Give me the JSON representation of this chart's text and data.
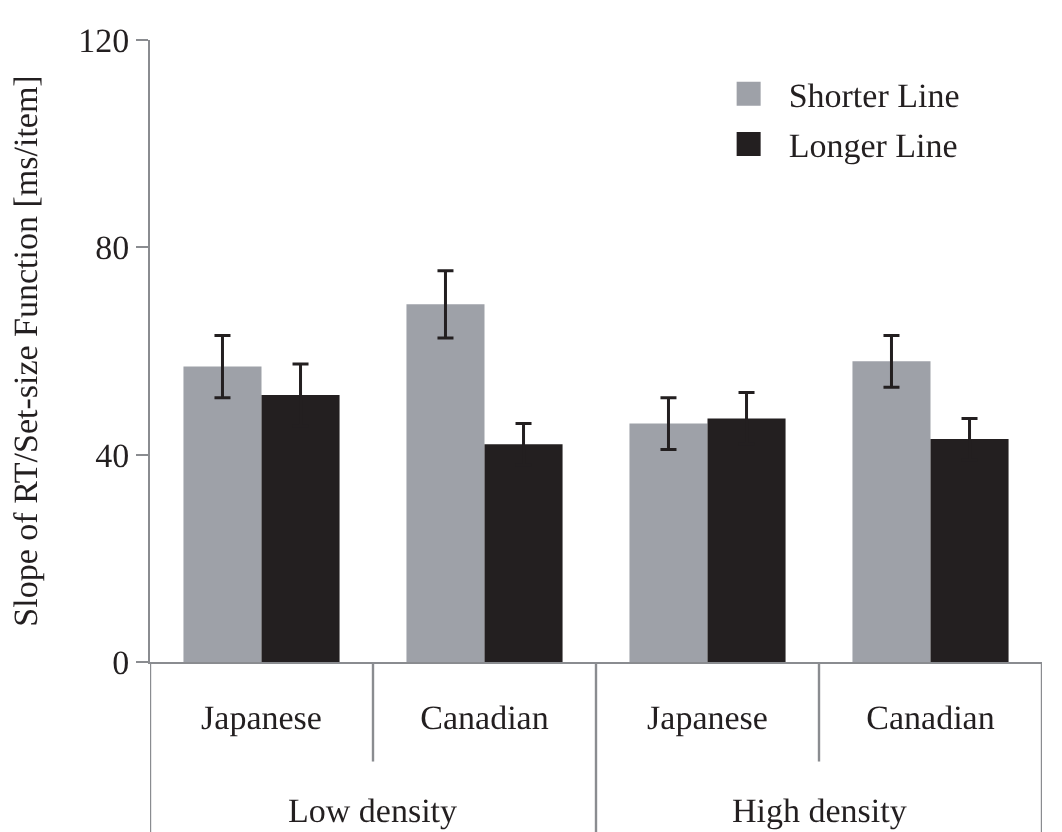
{
  "chart_data": {
    "type": "bar",
    "ylabel": "Slope of RT/Set-size Function [ms/item]",
    "categories": [
      "Japanese",
      "Canadian",
      "Japanese",
      "Canadian"
    ],
    "series": [
      {
        "name": "Shorter Line",
        "color": "#9ea1a8",
        "values": [
          57,
          69,
          46,
          58
        ],
        "errors": [
          6,
          6.5,
          5,
          5
        ]
      },
      {
        "name": "Longer Line",
        "color": "#231f20",
        "values": [
          51.5,
          42,
          47,
          43
        ],
        "errors": [
          6,
          4,
          5,
          4
        ]
      }
    ],
    "annotations": [
      "Low density",
      "High density"
    ],
    "ylim": [
      0,
      120
    ],
    "yticks": [
      0,
      40,
      80,
      120
    ],
    "legend": "top right"
  }
}
